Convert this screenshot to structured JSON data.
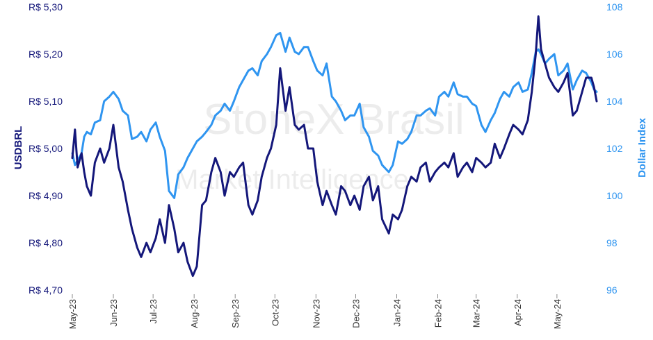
{
  "chart_data": {
    "type": "line",
    "ylabel_left": "USDBRL",
    "ylabel_right": "Dollar Index",
    "watermark": [
      "StoneX Brasil",
      "Market Intelligence"
    ],
    "colors": {
      "usdbrl": "#14177a",
      "dxy": "#2f95f0",
      "axis_left": "#14177a",
      "axis_right": "#2f95f0"
    },
    "grid": false,
    "ylim_left": [
      4.7,
      5.3
    ],
    "ylim_right": [
      96,
      108
    ],
    "yticks_left": [
      "R$ 4,70",
      "R$ 4,80",
      "R$ 4,90",
      "R$ 5,00",
      "R$ 5,10",
      "R$ 5,20",
      "R$ 5,30"
    ],
    "yticks_left_values": [
      4.7,
      4.8,
      4.9,
      5.0,
      5.1,
      5.2,
      5.3
    ],
    "yticks_right": [
      "96",
      "98",
      "100",
      "102",
      "104",
      "106",
      "108"
    ],
    "yticks_right_values": [
      96,
      98,
      100,
      102,
      104,
      106,
      108
    ],
    "xticks": [
      "May-23",
      "Jun-23",
      "Jul-23",
      "Aug-23",
      "Sep-23",
      "Oct-23",
      "Nov-23",
      "Dec-23",
      "Jan-24",
      "Feb-24",
      "Mar-24",
      "Apr-24",
      "May-24"
    ],
    "xticks_days": [
      0,
      31,
      61,
      92,
      123,
      153,
      184,
      214,
      245,
      276,
      305,
      336,
      366
    ],
    "x_start": "2023-05-01",
    "x_end": "2024-05-31",
    "series": [
      {
        "name": "USDBRL",
        "axis": "left",
        "x": [
          "2023-05-01",
          "2023-05-03",
          "2023-05-05",
          "2023-05-08",
          "2023-05-10",
          "2023-05-12",
          "2023-05-15",
          "2023-05-18",
          "2023-05-22",
          "2023-05-25",
          "2023-05-29",
          "2023-06-01",
          "2023-06-05",
          "2023-06-08",
          "2023-06-12",
          "2023-06-15",
          "2023-06-19",
          "2023-06-22",
          "2023-06-26",
          "2023-06-29",
          "2023-07-03",
          "2023-07-06",
          "2023-07-10",
          "2023-07-13",
          "2023-07-17",
          "2023-07-20",
          "2023-07-24",
          "2023-07-27",
          "2023-07-31",
          "2023-08-03",
          "2023-08-07",
          "2023-08-10",
          "2023-08-14",
          "2023-08-17",
          "2023-08-21",
          "2023-08-24",
          "2023-08-28",
          "2023-08-31",
          "2023-09-04",
          "2023-09-07",
          "2023-09-11",
          "2023-09-14",
          "2023-09-18",
          "2023-09-21",
          "2023-09-25",
          "2023-09-28",
          "2023-10-02",
          "2023-10-05",
          "2023-10-09",
          "2023-10-12",
          "2023-10-16",
          "2023-10-19",
          "2023-10-23",
          "2023-10-26",
          "2023-10-30",
          "2023-11-02",
          "2023-11-06",
          "2023-11-09",
          "2023-11-13",
          "2023-11-16",
          "2023-11-20",
          "2023-11-23",
          "2023-11-27",
          "2023-11-30",
          "2023-12-04",
          "2023-12-07",
          "2023-12-11",
          "2023-12-14",
          "2023-12-18",
          "2023-12-21",
          "2023-12-26",
          "2023-12-29",
          "2024-01-02",
          "2024-01-05",
          "2024-01-09",
          "2024-01-12",
          "2024-01-16",
          "2024-01-19",
          "2024-01-23",
          "2024-01-26",
          "2024-01-30",
          "2024-02-02",
          "2024-02-06",
          "2024-02-09",
          "2024-02-13",
          "2024-02-16",
          "2024-02-20",
          "2024-02-23",
          "2024-02-27",
          "2024-03-01",
          "2024-03-05",
          "2024-03-08",
          "2024-03-12",
          "2024-03-15",
          "2024-03-19",
          "2024-03-22",
          "2024-03-26",
          "2024-03-29",
          "2024-04-02",
          "2024-04-05",
          "2024-04-09",
          "2024-04-12",
          "2024-04-15",
          "2024-04-17",
          "2024-04-19",
          "2024-04-22",
          "2024-04-25",
          "2024-04-29",
          "2024-05-02",
          "2024-05-06",
          "2024-05-09",
          "2024-05-13",
          "2024-05-16",
          "2024-05-20",
          "2024-05-23",
          "2024-05-27",
          "2024-05-29",
          "2024-05-31"
        ],
        "values": [
          4.98,
          5.04,
          4.96,
          4.99,
          4.95,
          4.92,
          4.9,
          4.97,
          5.0,
          4.97,
          5.0,
          5.05,
          4.96,
          4.93,
          4.87,
          4.83,
          4.79,
          4.77,
          4.8,
          4.78,
          4.81,
          4.85,
          4.8,
          4.88,
          4.83,
          4.78,
          4.8,
          4.76,
          4.73,
          4.75,
          4.88,
          4.89,
          4.95,
          4.98,
          4.95,
          4.9,
          4.95,
          4.94,
          4.96,
          4.97,
          4.88,
          4.86,
          4.89,
          4.94,
          4.98,
          5.0,
          5.05,
          5.17,
          5.08,
          5.13,
          5.05,
          5.04,
          5.05,
          5.0,
          5.0,
          4.93,
          4.88,
          4.91,
          4.88,
          4.86,
          4.92,
          4.91,
          4.88,
          4.9,
          4.87,
          4.92,
          4.94,
          4.89,
          4.92,
          4.85,
          4.82,
          4.86,
          4.85,
          4.87,
          4.92,
          4.94,
          4.93,
          4.96,
          4.97,
          4.93,
          4.95,
          4.96,
          4.97,
          4.96,
          4.99,
          4.94,
          4.96,
          4.97,
          4.95,
          4.98,
          4.97,
          4.96,
          4.97,
          5.01,
          4.98,
          5.0,
          5.03,
          5.05,
          5.04,
          5.03,
          5.06,
          5.12,
          5.2,
          5.28,
          5.21,
          5.18,
          5.15,
          5.13,
          5.12,
          5.14,
          5.16,
          5.07,
          5.08,
          5.12,
          5.15,
          5.15,
          5.13,
          5.1
        ]
      },
      {
        "name": "Dollar Index",
        "axis": "right",
        "x": [
          "2023-05-01",
          "2023-05-03",
          "2023-05-05",
          "2023-05-08",
          "2023-05-10",
          "2023-05-12",
          "2023-05-15",
          "2023-05-18",
          "2023-05-22",
          "2023-05-25",
          "2023-05-29",
          "2023-06-01",
          "2023-06-05",
          "2023-06-08",
          "2023-06-12",
          "2023-06-15",
          "2023-06-19",
          "2023-06-22",
          "2023-06-26",
          "2023-06-29",
          "2023-07-03",
          "2023-07-06",
          "2023-07-10",
          "2023-07-13",
          "2023-07-17",
          "2023-07-20",
          "2023-07-24",
          "2023-07-27",
          "2023-07-31",
          "2023-08-03",
          "2023-08-07",
          "2023-08-10",
          "2023-08-14",
          "2023-08-17",
          "2023-08-21",
          "2023-08-24",
          "2023-08-28",
          "2023-08-31",
          "2023-09-04",
          "2023-09-07",
          "2023-09-11",
          "2023-09-14",
          "2023-09-18",
          "2023-09-21",
          "2023-09-25",
          "2023-09-28",
          "2023-10-02",
          "2023-10-05",
          "2023-10-09",
          "2023-10-12",
          "2023-10-16",
          "2023-10-19",
          "2023-10-23",
          "2023-10-26",
          "2023-10-30",
          "2023-11-02",
          "2023-11-06",
          "2023-11-09",
          "2023-11-13",
          "2023-11-16",
          "2023-11-20",
          "2023-11-23",
          "2023-11-27",
          "2023-11-30",
          "2023-12-04",
          "2023-12-07",
          "2023-12-11",
          "2023-12-14",
          "2023-12-18",
          "2023-12-21",
          "2023-12-26",
          "2023-12-29",
          "2024-01-02",
          "2024-01-05",
          "2024-01-09",
          "2024-01-12",
          "2024-01-16",
          "2024-01-19",
          "2024-01-23",
          "2024-01-26",
          "2024-01-30",
          "2024-02-02",
          "2024-02-06",
          "2024-02-09",
          "2024-02-13",
          "2024-02-16",
          "2024-02-20",
          "2024-02-23",
          "2024-02-27",
          "2024-03-01",
          "2024-03-05",
          "2024-03-08",
          "2024-03-12",
          "2024-03-15",
          "2024-03-19",
          "2024-03-22",
          "2024-03-26",
          "2024-03-29",
          "2024-04-02",
          "2024-04-05",
          "2024-04-09",
          "2024-04-12",
          "2024-04-15",
          "2024-04-17",
          "2024-04-19",
          "2024-04-22",
          "2024-04-25",
          "2024-04-29",
          "2024-05-02",
          "2024-05-06",
          "2024-05-09",
          "2024-05-13",
          "2024-05-16",
          "2024-05-20",
          "2024-05-23",
          "2024-05-27",
          "2024-05-29",
          "2024-05-31"
        ],
        "values": [
          101.8,
          101.3,
          101.5,
          101.8,
          102.5,
          102.7,
          102.6,
          103.1,
          103.2,
          104.0,
          104.2,
          104.4,
          104.1,
          103.6,
          103.4,
          102.4,
          102.5,
          102.7,
          102.3,
          102.8,
          103.1,
          102.5,
          101.9,
          100.2,
          99.9,
          100.9,
          101.2,
          101.6,
          102.0,
          102.3,
          102.5,
          102.7,
          103.0,
          103.4,
          103.6,
          103.9,
          103.6,
          104.0,
          104.6,
          104.9,
          105.3,
          105.4,
          105.1,
          105.7,
          106.0,
          106.3,
          106.8,
          106.9,
          106.1,
          106.7,
          106.1,
          106.0,
          106.3,
          106.3,
          105.7,
          105.3,
          105.1,
          105.6,
          104.2,
          104.0,
          103.6,
          103.2,
          103.4,
          103.4,
          103.9,
          102.9,
          102.5,
          101.9,
          101.7,
          101.3,
          101.0,
          101.3,
          102.3,
          102.2,
          102.4,
          102.7,
          103.4,
          103.4,
          103.6,
          103.7,
          103.4,
          104.2,
          104.4,
          104.2,
          104.8,
          104.3,
          104.2,
          104.2,
          103.9,
          103.8,
          103.0,
          102.7,
          103.2,
          103.5,
          104.1,
          104.4,
          104.2,
          104.6,
          104.8,
          104.4,
          104.5,
          105.2,
          106.1,
          106.2,
          106.0,
          105.6,
          105.8,
          106.0,
          105.1,
          105.3,
          105.6,
          104.5,
          104.9,
          105.3,
          105.2,
          104.8,
          104.5,
          104.4
        ]
      }
    ]
  }
}
